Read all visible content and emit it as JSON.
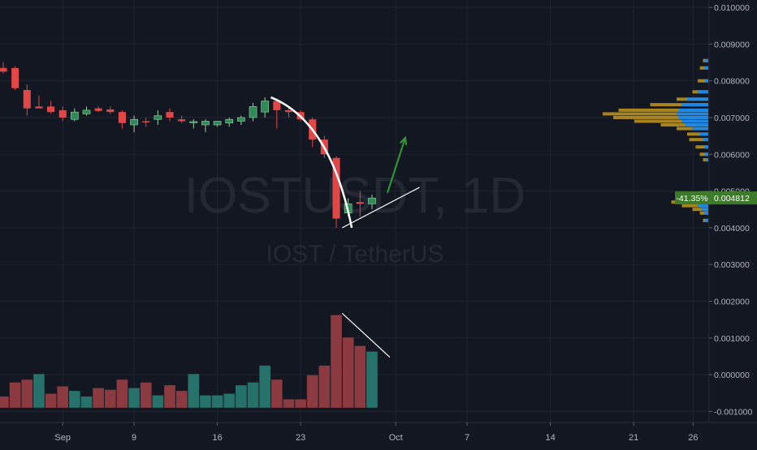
{
  "chart_data": {
    "type": "candlestick",
    "watermark": {
      "symbol": "IOSTUSDT, 1D",
      "description": "IOST / TetherUS"
    },
    "colors": {
      "background": "#131722",
      "grid": "#1f2430",
      "up": "#2e8b57",
      "down": "#e04848",
      "volume_up": "#26726a",
      "volume_down": "#8b3a40",
      "axis_text": "#b2b5be",
      "price_label_bg": "#3d7a2a",
      "vp_up": "#b9901e",
      "vp_down": "#1e88e5",
      "vp_poc": "#1e6fc2",
      "annotation_white": "#ffffff",
      "annotation_green": "#2e9e34"
    },
    "y_axis": {
      "min": -0.0013,
      "max": 0.0102,
      "ticks": [
        "0.010000",
        "0.009000",
        "0.008000",
        "0.007000",
        "0.006000",
        "0.005000",
        "0.004000",
        "0.003000",
        "0.002000",
        "0.001000",
        "0.000000",
        "-0.001000"
      ]
    },
    "x_axis": {
      "labels": [
        {
          "day": 3,
          "text": "Sep"
        },
        {
          "day": 9,
          "text": "9"
        },
        {
          "day": 16,
          "text": "16"
        },
        {
          "day": 23,
          "text": "23"
        },
        {
          "day": 31,
          "text": "Oct"
        },
        {
          "day": 37,
          "text": "7"
        },
        {
          "day": 44,
          "text": "14"
        },
        {
          "day": 51,
          "text": "21"
        },
        {
          "day": 56,
          "text": "26"
        }
      ],
      "day_min": -2,
      "day_max": 57
    },
    "candles": [
      {
        "day": -2,
        "o": 0.00835,
        "h": 0.0085,
        "l": 0.0082,
        "c": 0.00825
      },
      {
        "day": -1,
        "o": 0.00835,
        "h": 0.0084,
        "l": 0.00775,
        "c": 0.0078
      },
      {
        "day": 0,
        "o": 0.00775,
        "h": 0.0079,
        "l": 0.00705,
        "c": 0.00725
      },
      {
        "day": 1,
        "o": 0.0073,
        "h": 0.0076,
        "l": 0.00725,
        "c": 0.00725
      },
      {
        "day": 2,
        "o": 0.0073,
        "h": 0.00745,
        "l": 0.0071,
        "c": 0.00715
      },
      {
        "day": 3,
        "o": 0.0072,
        "h": 0.0073,
        "l": 0.0069,
        "c": 0.007
      },
      {
        "day": 4,
        "o": 0.00695,
        "h": 0.00725,
        "l": 0.0069,
        "c": 0.00715
      },
      {
        "day": 5,
        "o": 0.0071,
        "h": 0.0073,
        "l": 0.00705,
        "c": 0.0072
      },
      {
        "day": 6,
        "o": 0.00725,
        "h": 0.0073,
        "l": 0.00715,
        "c": 0.00718
      },
      {
        "day": 7,
        "o": 0.00722,
        "h": 0.0073,
        "l": 0.0071,
        "c": 0.00715
      },
      {
        "day": 8,
        "o": 0.00715,
        "h": 0.0072,
        "l": 0.0067,
        "c": 0.00685
      },
      {
        "day": 9,
        "o": 0.0068,
        "h": 0.00705,
        "l": 0.0066,
        "c": 0.00695
      },
      {
        "day": 10,
        "o": 0.0069,
        "h": 0.007,
        "l": 0.00675,
        "c": 0.00688
      },
      {
        "day": 11,
        "o": 0.00695,
        "h": 0.0072,
        "l": 0.0068,
        "c": 0.00705
      },
      {
        "day": 12,
        "o": 0.00715,
        "h": 0.00725,
        "l": 0.0069,
        "c": 0.007
      },
      {
        "day": 13,
        "o": 0.00695,
        "h": 0.00705,
        "l": 0.00685,
        "c": 0.0069
      },
      {
        "day": 14,
        "o": 0.00688,
        "h": 0.00695,
        "l": 0.0067,
        "c": 0.00689
      },
      {
        "day": 15,
        "o": 0.0068,
        "h": 0.00695,
        "l": 0.0066,
        "c": 0.0069
      },
      {
        "day": 16,
        "o": 0.0068,
        "h": 0.0069,
        "l": 0.00675,
        "c": 0.0069
      },
      {
        "day": 17,
        "o": 0.00685,
        "h": 0.007,
        "l": 0.00675,
        "c": 0.00695
      },
      {
        "day": 18,
        "o": 0.0069,
        "h": 0.00705,
        "l": 0.0068,
        "c": 0.007
      },
      {
        "day": 19,
        "o": 0.007,
        "h": 0.0074,
        "l": 0.0069,
        "c": 0.0073
      },
      {
        "day": 20,
        "o": 0.00715,
        "h": 0.00755,
        "l": 0.007,
        "c": 0.00745
      },
      {
        "day": 21,
        "o": 0.00745,
        "h": 0.0075,
        "l": 0.0067,
        "c": 0.0072
      },
      {
        "day": 22,
        "o": 0.0072,
        "h": 0.0073,
        "l": 0.007,
        "c": 0.00715
      },
      {
        "day": 23,
        "o": 0.00715,
        "h": 0.0072,
        "l": 0.0069,
        "c": 0.00695
      },
      {
        "day": 24,
        "o": 0.00695,
        "h": 0.007,
        "l": 0.0062,
        "c": 0.0064
      },
      {
        "day": 25,
        "o": 0.0064,
        "h": 0.0065,
        "l": 0.0059,
        "c": 0.006
      },
      {
        "day": 26,
        "o": 0.0059,
        "h": 0.00595,
        "l": 0.004,
        "c": 0.00425
      },
      {
        "day": 27,
        "o": 0.0044,
        "h": 0.0048,
        "l": 0.0043,
        "c": 0.00465
      },
      {
        "day": 28,
        "o": 0.0047,
        "h": 0.005,
        "l": 0.0043,
        "c": 0.00465
      },
      {
        "day": 29,
        "o": 0.00465,
        "h": 0.0049,
        "l": 0.0045,
        "c": 0.00481
      }
    ],
    "volume_scale": {
      "max": 0.0017
    },
    "volumes": [
      {
        "day": -2,
        "v": 0.0002,
        "up": false
      },
      {
        "day": -1,
        "v": 0.00045,
        "up": false
      },
      {
        "day": 0,
        "v": 0.0005,
        "up": false
      },
      {
        "day": 1,
        "v": 0.0006,
        "up": true
      },
      {
        "day": 2,
        "v": 0.00025,
        "up": false
      },
      {
        "day": 3,
        "v": 0.00038,
        "up": false
      },
      {
        "day": 4,
        "v": 0.0003,
        "up": true
      },
      {
        "day": 5,
        "v": 0.0002,
        "up": true
      },
      {
        "day": 6,
        "v": 0.00035,
        "up": false
      },
      {
        "day": 7,
        "v": 0.00032,
        "up": false
      },
      {
        "day": 8,
        "v": 0.0005,
        "up": false
      },
      {
        "day": 9,
        "v": 0.00035,
        "up": true
      },
      {
        "day": 10,
        "v": 0.00045,
        "up": false
      },
      {
        "day": 11,
        "v": 0.00022,
        "up": true
      },
      {
        "day": 12,
        "v": 0.0004,
        "up": false
      },
      {
        "day": 13,
        "v": 0.0003,
        "up": false
      },
      {
        "day": 14,
        "v": 0.0006,
        "up": true
      },
      {
        "day": 15,
        "v": 0.00022,
        "up": true
      },
      {
        "day": 16,
        "v": 0.00022,
        "up": true
      },
      {
        "day": 17,
        "v": 0.00025,
        "up": true
      },
      {
        "day": 18,
        "v": 0.0004,
        "up": true
      },
      {
        "day": 19,
        "v": 0.00045,
        "up": true
      },
      {
        "day": 20,
        "v": 0.00075,
        "up": true
      },
      {
        "day": 21,
        "v": 0.0005,
        "up": false
      },
      {
        "day": 22,
        "v": 0.00015,
        "up": false
      },
      {
        "day": 23,
        "v": 0.00015,
        "up": false
      },
      {
        "day": 24,
        "v": 0.00058,
        "up": false
      },
      {
        "day": 25,
        "v": 0.00075,
        "up": false
      },
      {
        "day": 26,
        "v": 0.00165,
        "up": false
      },
      {
        "day": 27,
        "v": 0.00125,
        "up": false
      },
      {
        "day": 28,
        "v": 0.0011,
        "up": false
      },
      {
        "day": 29,
        "v": 0.001,
        "up": true
      }
    ],
    "volume_profile": [
      {
        "price": 0.00855,
        "up": 0.05,
        "down": 0.03
      },
      {
        "price": 0.00835,
        "up": 0.08,
        "down": 0.04
      },
      {
        "price": 0.008,
        "up": 0.1,
        "down": 0.03
      },
      {
        "price": 0.0077,
        "up": 0.15,
        "down": 0.1
      },
      {
        "price": 0.0075,
        "up": 0.3,
        "down": 0.2
      },
      {
        "price": 0.00735,
        "up": 0.55,
        "down": 0.25
      },
      {
        "price": 0.0072,
        "up": 0.85,
        "down": 0.28
      },
      {
        "price": 0.0071,
        "up": 1.0,
        "down": 0.3
      },
      {
        "price": 0.007,
        "up": 0.9,
        "down": 0.28
      },
      {
        "price": 0.0069,
        "up": 0.7,
        "down": 0.25
      },
      {
        "price": 0.0068,
        "up": 0.45,
        "down": 0.22
      },
      {
        "price": 0.0067,
        "up": 0.3,
        "down": 0.15
      },
      {
        "price": 0.00655,
        "up": 0.2,
        "down": 0.08
      },
      {
        "price": 0.0064,
        "up": 0.18,
        "down": 0.05
      },
      {
        "price": 0.0062,
        "up": 0.12,
        "down": 0.04
      },
      {
        "price": 0.006,
        "up": 0.08,
        "down": 0.03
      },
      {
        "price": 0.00585,
        "up": 0.05,
        "down": 0.02
      },
      {
        "price": 0.00495,
        "up": 0.08,
        "down": 0.04
      },
      {
        "price": 0.0048,
        "up": 0.2,
        "down": 0.1
      },
      {
        "price": 0.0047,
        "up": 0.35,
        "down": 0.12
      },
      {
        "price": 0.0046,
        "up": 0.25,
        "down": 0.1
      },
      {
        "price": 0.0045,
        "up": 0.15,
        "down": 0.06
      },
      {
        "price": 0.0044,
        "up": 0.08,
        "down": 0.04
      },
      {
        "price": 0.0042,
        "up": 0.05,
        "down": 0.03
      }
    ],
    "last_price": {
      "value": 0.004812,
      "text": "0.004812",
      "change_text": "-41.35%"
    },
    "annotations": {
      "curve": [
        {
          "day": 20.5,
          "p": 0.00755
        },
        {
          "day": 25.5,
          "p": 0.0069
        },
        {
          "day": 27.3,
          "p": 0.004
        }
      ],
      "trend_line": [
        {
          "day": 26.5,
          "p": 0.004
        },
        {
          "day": 33.0,
          "p": 0.0051
        }
      ],
      "up_arrow": [
        {
          "day": 30.3,
          "p": 0.00495
        },
        {
          "day": 31.8,
          "p": 0.00645
        }
      ],
      "volume_line": [
        {
          "day": 26.5,
          "v": 0.00168
        },
        {
          "day": 30.5,
          "v": 0.0009
        }
      ]
    }
  }
}
